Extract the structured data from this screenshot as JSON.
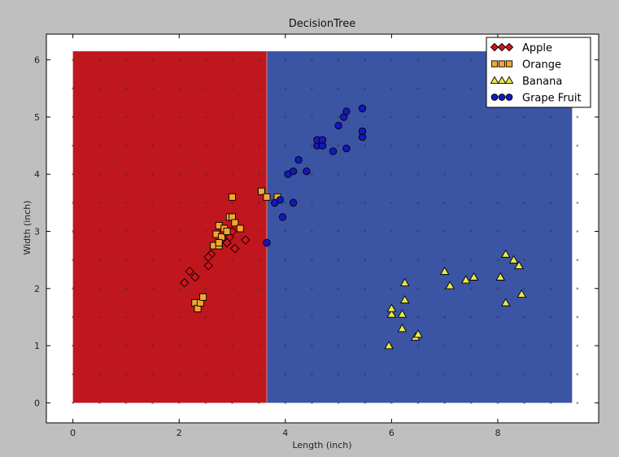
{
  "chart_data": {
    "type": "scatter",
    "title": "DecisionTree",
    "xlabel": "Length (inch)",
    "ylabel": "Width (inch)",
    "xlim": [
      -0.5,
      9.9
    ],
    "ylim": [
      -0.35,
      6.45
    ],
    "xticks": [
      0,
      2,
      4,
      6,
      8
    ],
    "yticks": [
      0,
      1,
      2,
      3,
      4,
      5,
      6
    ],
    "legend_position": "top-right",
    "decision_regions": [
      {
        "x_range": [
          0,
          3.65
        ],
        "y_range": [
          0,
          6.15
        ],
        "color": "#c0161e"
      },
      {
        "x_range": [
          3.65,
          9.4
        ],
        "y_range": [
          0,
          6.15
        ],
        "color": "#3b55a4"
      }
    ],
    "grid_dots": {
      "x_step": 0.5,
      "y_step": 0.5,
      "x_range": [
        0,
        9.5
      ],
      "y_range": [
        0,
        6
      ]
    },
    "series": [
      {
        "name": "Apple",
        "marker": "diamond",
        "color": "#d4141b",
        "points": [
          [
            2.1,
            2.1
          ],
          [
            2.2,
            2.3
          ],
          [
            2.3,
            2.2
          ],
          [
            2.55,
            2.4
          ],
          [
            2.6,
            2.6
          ],
          [
            2.55,
            2.55
          ],
          [
            2.9,
            2.8
          ],
          [
            3.0,
            3.0
          ],
          [
            3.05,
            2.7
          ],
          [
            3.25,
            2.85
          ],
          [
            2.95,
            2.9
          ],
          [
            2.8,
            2.95
          ]
        ]
      },
      {
        "name": "Orange",
        "marker": "square",
        "color": "#f0a830",
        "points": [
          [
            2.3,
            1.75
          ],
          [
            2.35,
            1.65
          ],
          [
            2.4,
            1.75
          ],
          [
            2.45,
            1.85
          ],
          [
            2.65,
            2.75
          ],
          [
            2.75,
            2.75
          ],
          [
            2.7,
            2.95
          ],
          [
            2.75,
            3.1
          ],
          [
            2.85,
            3.05
          ],
          [
            2.8,
            2.9
          ],
          [
            2.9,
            3.0
          ],
          [
            2.95,
            3.25
          ],
          [
            3.0,
            3.25
          ],
          [
            3.05,
            3.15
          ],
          [
            3.15,
            3.05
          ],
          [
            2.75,
            2.8
          ],
          [
            3.0,
            3.6
          ],
          [
            3.55,
            3.7
          ],
          [
            3.65,
            3.6
          ],
          [
            3.85,
            3.6
          ]
        ]
      },
      {
        "name": "Banana",
        "marker": "triangle",
        "color": "#e8e84a",
        "points": [
          [
            5.95,
            1.0
          ],
          [
            6.0,
            1.55
          ],
          [
            6.0,
            1.65
          ],
          [
            6.2,
            1.3
          ],
          [
            6.2,
            1.55
          ],
          [
            6.25,
            1.8
          ],
          [
            6.25,
            2.1
          ],
          [
            6.45,
            1.15
          ],
          [
            6.5,
            1.2
          ],
          [
            7.0,
            2.3
          ],
          [
            7.1,
            2.05
          ],
          [
            7.4,
            2.15
          ],
          [
            7.55,
            2.2
          ],
          [
            8.05,
            2.2
          ],
          [
            8.15,
            1.75
          ],
          [
            8.15,
            2.6
          ],
          [
            8.3,
            2.5
          ],
          [
            8.4,
            2.4
          ],
          [
            8.45,
            1.9
          ]
        ]
      },
      {
        "name": "Grape Fruit",
        "marker": "circle",
        "color": "#1418bd",
        "points": [
          [
            3.65,
            2.8
          ],
          [
            3.8,
            3.5
          ],
          [
            3.9,
            3.55
          ],
          [
            3.95,
            3.25
          ],
          [
            4.05,
            4.0
          ],
          [
            4.15,
            4.05
          ],
          [
            4.15,
            3.5
          ],
          [
            4.25,
            4.25
          ],
          [
            4.4,
            4.05
          ],
          [
            4.6,
            4.5
          ],
          [
            4.6,
            4.6
          ],
          [
            4.7,
            4.5
          ],
          [
            4.7,
            4.6
          ],
          [
            4.9,
            4.4
          ],
          [
            5.0,
            4.85
          ],
          [
            5.1,
            5.0
          ],
          [
            5.15,
            5.1
          ],
          [
            5.15,
            4.45
          ],
          [
            5.45,
            5.15
          ],
          [
            5.45,
            4.65
          ],
          [
            5.45,
            4.75
          ]
        ]
      }
    ]
  }
}
